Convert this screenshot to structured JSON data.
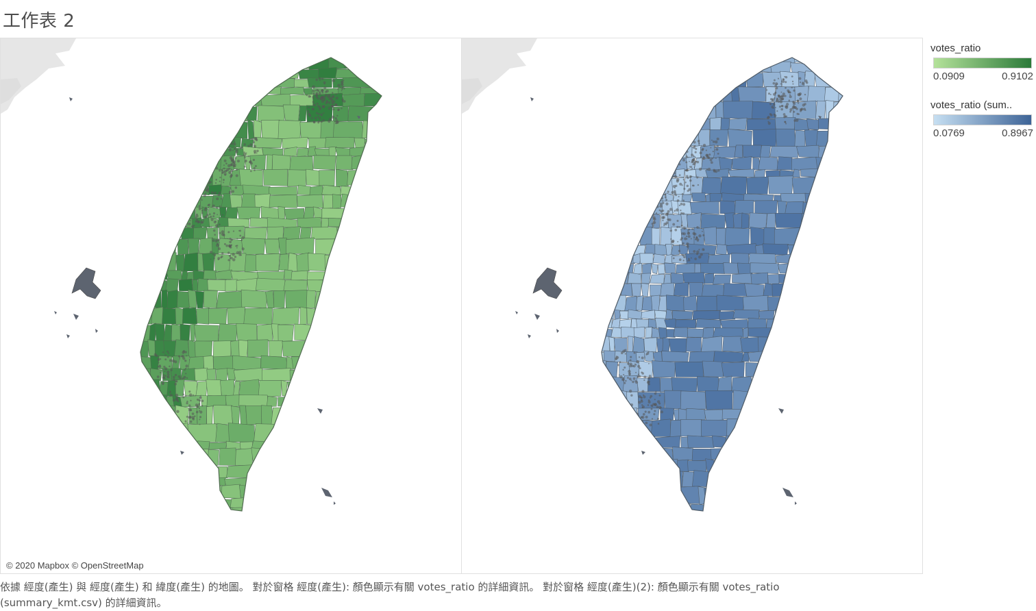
{
  "sheet_title": "工作表 2",
  "maps": [
    {
      "name": "left-map",
      "measure": "votes_ratio",
      "color_low": "#a8dc92",
      "color_high": "#2f7d3e",
      "border": "#4f6a4f"
    },
    {
      "name": "right-map",
      "measure": "votes_ratio (summary_kmt.csv)",
      "color_low": "#b7d3ec",
      "color_high": "#3b6296",
      "border": "#4e5a66"
    }
  ],
  "attribution": "© 2020 Mapbox © OpenStreetMap",
  "legends": [
    {
      "title": "votes_ratio",
      "min": "0.0909",
      "max": "0.9102",
      "color_low": "#b4e29a",
      "color_high": "#2c7a3a"
    },
    {
      "title": "votes_ratio (sum..",
      "min": "0.0769",
      "max": "0.8967",
      "color_low": "#c6dff2",
      "color_high": "#3e6497"
    }
  ],
  "caption_line1": "依據 經度(產生) 與 經度(產生) 和 緯度(產生) 的地圖。 對於窗格 經度(產生): 顏色顯示有關 votes_ratio 的詳細資訊。 對於窗格 經度(產生)(2): 顏色顯示有關 votes_ratio",
  "caption_line2": "(summary_kmt.csv) 的詳細資訊。"
}
